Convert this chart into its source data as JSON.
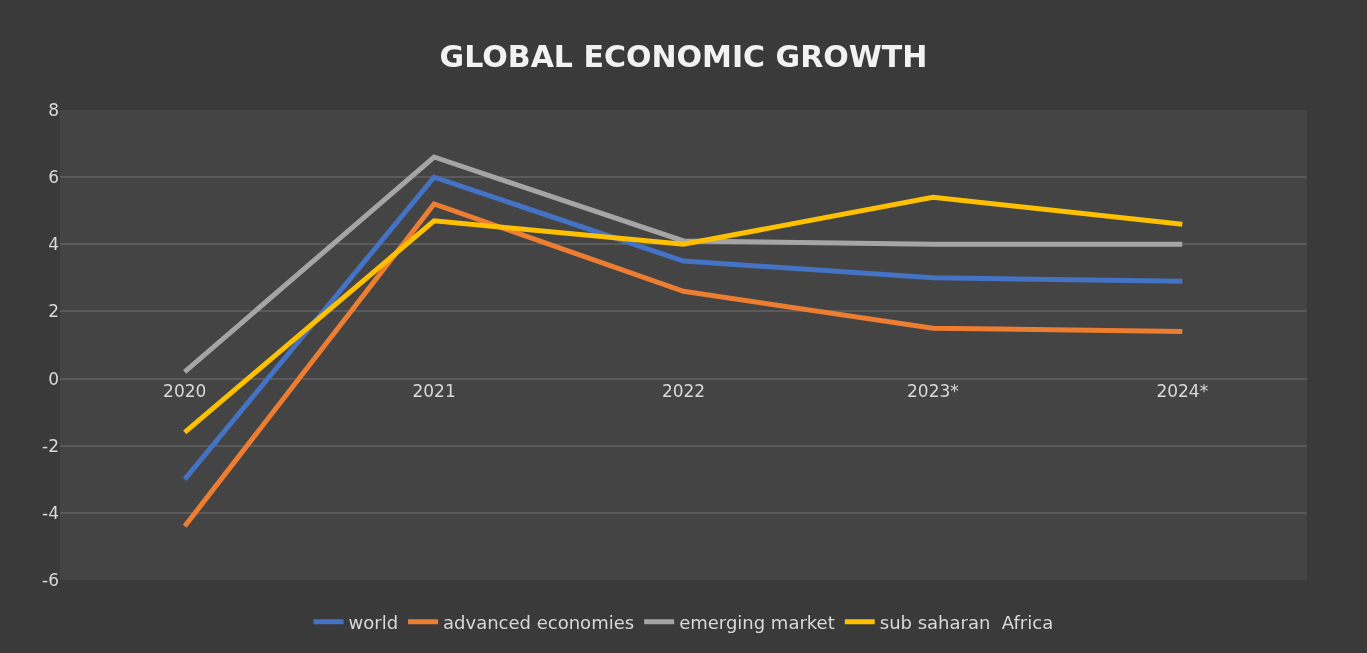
{
  "chart_data": {
    "type": "line",
    "title": "GLOBAL ECONOMIC GROWTH",
    "categories": [
      "2020",
      "2021",
      "2022",
      "2023*",
      "2024*"
    ],
    "series": [
      {
        "name": "world",
        "color": "#4472c4",
        "values": [
          -3.0,
          6.0,
          3.5,
          3.0,
          2.9
        ]
      },
      {
        "name": "advanced economies",
        "color": "#ed7d31",
        "values": [
          -4.4,
          5.2,
          2.6,
          1.5,
          1.4
        ]
      },
      {
        "name": "emerging market",
        "color": "#a5a5a5",
        "values": [
          0.2,
          6.6,
          4.1,
          4.0,
          4.0
        ]
      },
      {
        "name": "sub saharan  Africa",
        "color": "#ffc000",
        "values": [
          -1.6,
          4.7,
          4.0,
          5.4,
          4.6
        ]
      }
    ],
    "ylim": [
      -6,
      8
    ],
    "yticks": [
      -6,
      -4,
      -2,
      0,
      2,
      4,
      6,
      8
    ],
    "grid": "y",
    "legend": "bottom",
    "marker": "none",
    "line_style": "solid"
  }
}
